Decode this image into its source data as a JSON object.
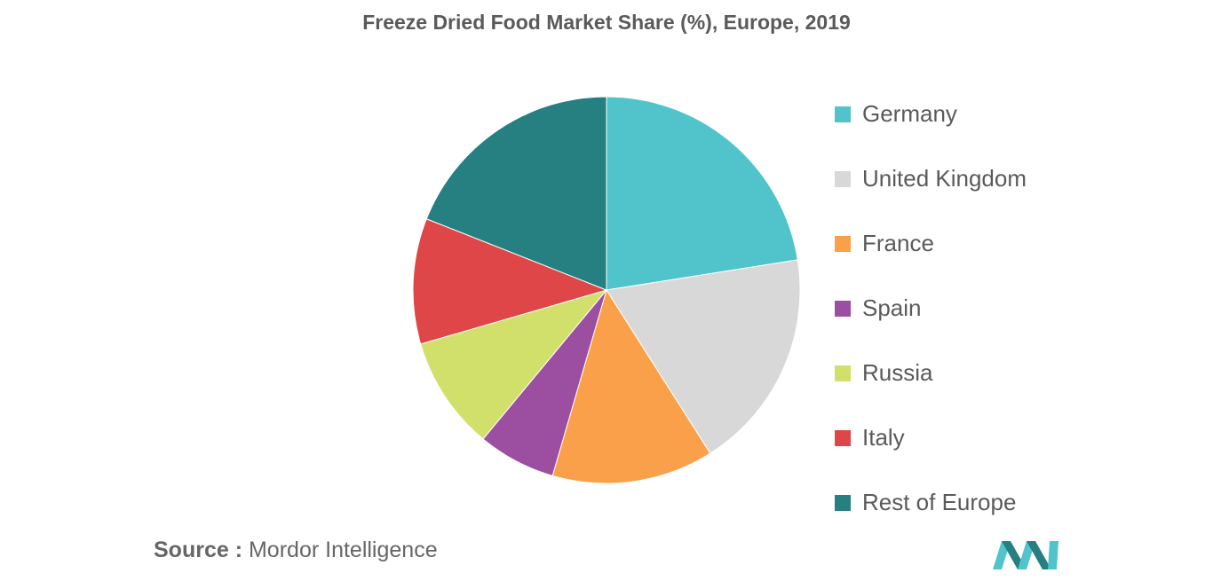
{
  "chart_data": {
    "type": "pie",
    "title": "Freeze Dried Food Market Share (%), Europe, 2019",
    "legend_position": "right",
    "slices": [
      {
        "label": "Germany",
        "value": 22.5,
        "color": "#50c4ca"
      },
      {
        "label": "United Kingdom",
        "value": 18.5,
        "color": "#d8d8d8"
      },
      {
        "label": "France",
        "value": 13.5,
        "color": "#fba04a"
      },
      {
        "label": "Spain",
        "value": 6.5,
        "color": "#9c4fa0"
      },
      {
        "label": "Russia",
        "value": 9.5,
        "color": "#d1e06b"
      },
      {
        "label": "Italy",
        "value": 10.5,
        "color": "#de4647"
      },
      {
        "label": "Rest of Europe",
        "value": 19.0,
        "color": "#267f80"
      }
    ]
  },
  "source": {
    "label": "Source :",
    "text": "Mordor Intelligence"
  },
  "logo": {
    "name": "mordor-intelligence-logo",
    "colors": [
      "#50c4ca",
      "#267f80"
    ]
  }
}
